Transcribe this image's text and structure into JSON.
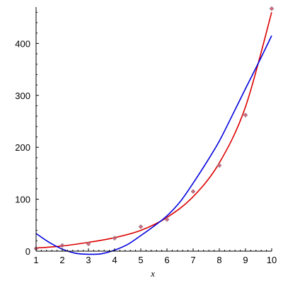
{
  "chart_data": {
    "type": "scatter",
    "title": "",
    "xlabel": "x",
    "ylabel": "",
    "xlim": [
      1,
      10
    ],
    "ylim": [
      0,
      470
    ],
    "grid": false,
    "legend": "none",
    "x_ticks": [
      "1",
      "2",
      "3",
      "4",
      "5",
      "6",
      "7",
      "8",
      "9",
      "10"
    ],
    "y_ticks": [
      "0",
      "100",
      "200",
      "300",
      "400"
    ],
    "series": [
      {
        "kind": "points",
        "color": "#d04a6a",
        "marker": "diamond",
        "x": [
          1,
          2,
          3,
          4,
          5,
          6,
          7,
          8,
          9,
          10
        ],
        "y": [
          5,
          11,
          14,
          25,
          47,
          61,
          115,
          165,
          262,
          467
        ]
      },
      {
        "kind": "curve",
        "color": "#dd0000",
        "x": [
          1,
          2,
          3,
          4,
          5,
          6,
          7,
          8,
          9,
          10
        ],
        "y": [
          6,
          10,
          17,
          26,
          40,
          65,
          105,
          170,
          278,
          460
        ]
      },
      {
        "kind": "curve",
        "color": "#0000dd",
        "x": [
          1,
          1.5,
          2,
          2.5,
          3,
          3.5,
          4,
          4.5,
          5,
          5.5,
          6,
          6.5,
          7,
          7.5,
          8,
          8.5,
          9,
          9.5,
          10
        ],
        "y": [
          34,
          17,
          4,
          -4,
          -6,
          -5,
          2,
          13,
          30,
          48,
          68,
          95,
          131,
          170,
          212,
          262,
          313,
          363,
          415
        ]
      }
    ]
  }
}
